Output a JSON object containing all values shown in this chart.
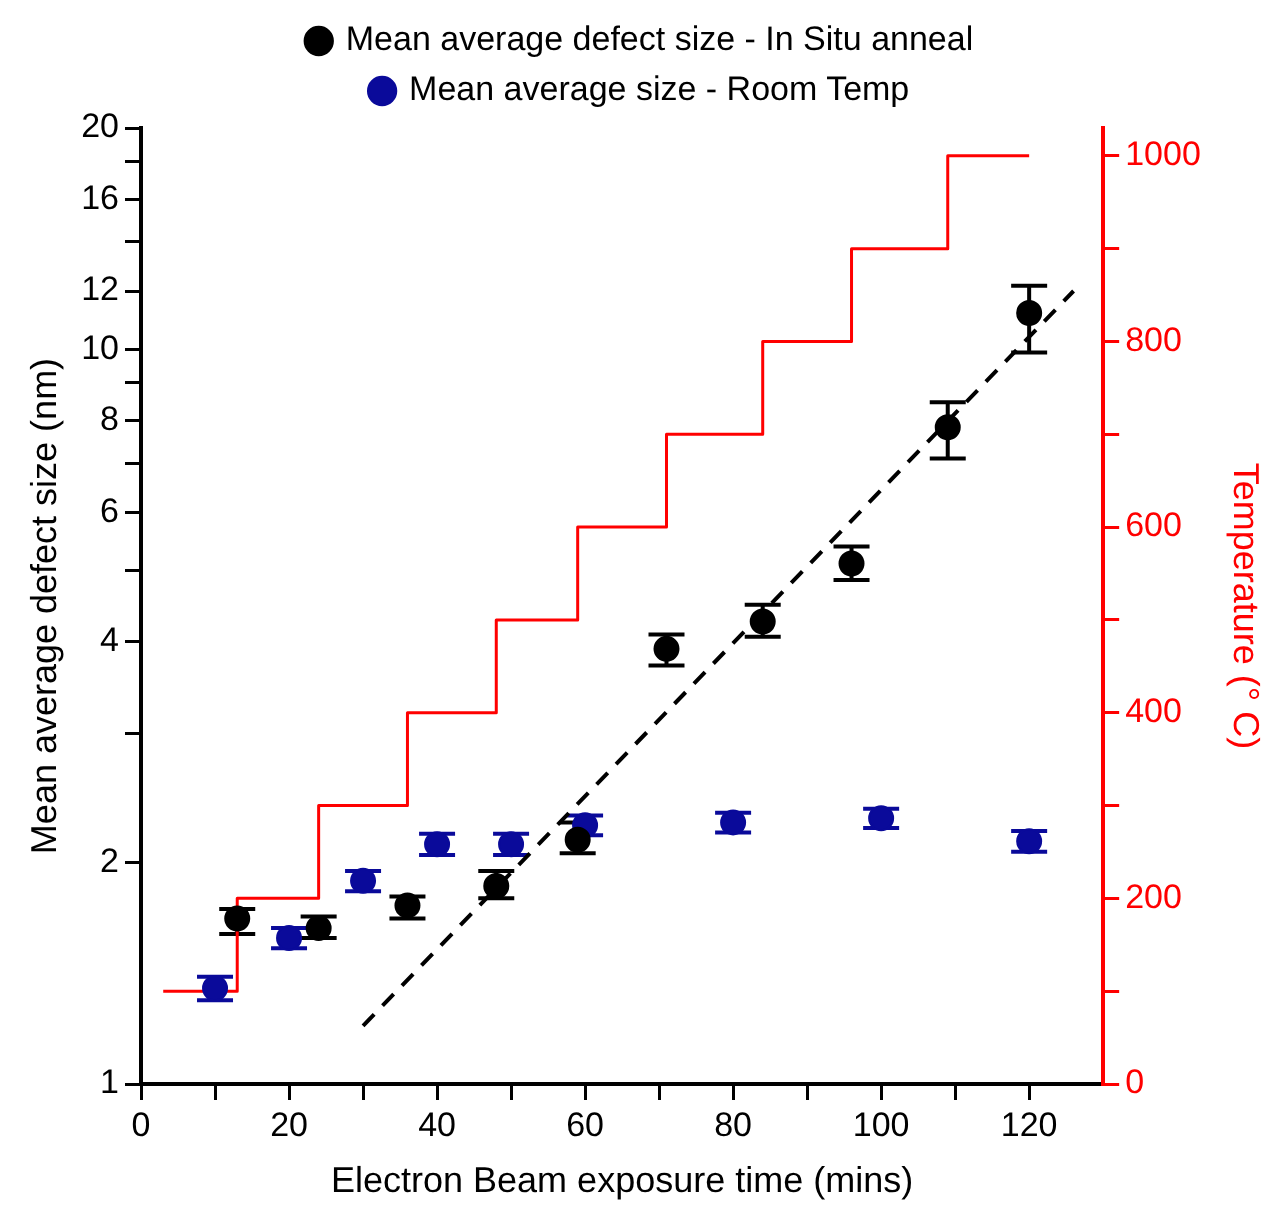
{
  "chart_data": {
    "type": "scatter",
    "xlabel": "Electron Beam exposure time (mins)",
    "ylabel": "Mean average defect size (nm)",
    "y2label": "Temperature (° C)",
    "xlim": [
      0,
      130
    ],
    "xticks": [
      0,
      {
        "value": 10,
        "label": null
      },
      20,
      {
        "value": 30,
        "label": null
      },
      40,
      {
        "value": 50,
        "label": null
      },
      60,
      {
        "value": 70,
        "label": null
      },
      80,
      {
        "value": 90,
        "label": null
      },
      100,
      {
        "value": 110,
        "label": null
      },
      120
    ],
    "ylim": [
      1,
      20
    ],
    "log": "y",
    "yticks": [
      1,
      2,
      {
        "value": 3,
        "label": null
      },
      4,
      {
        "value": 5,
        "label": null
      },
      6,
      {
        "value": 7,
        "label": null
      },
      8,
      {
        "value": 9,
        "label": null
      },
      10,
      12,
      {
        "value": 14,
        "label": null
      },
      16,
      {
        "value": 18,
        "label": null
      },
      20
    ],
    "y2lim": [
      0,
      1030
    ],
    "y2ticks": [
      0,
      {
        "value": 100,
        "label": null
      },
      200,
      {
        "value": 300,
        "label": null
      },
      400,
      {
        "value": 500,
        "label": null
      },
      600,
      {
        "value": 700,
        "label": null
      },
      800,
      {
        "value": 900,
        "label": null
      },
      1000
    ],
    "legend": "top",
    "grid": false,
    "series": [
      {
        "name": "Mean average defect size - In Situ anneal",
        "color": "#000000",
        "marker": "circle",
        "x": [
          13,
          24,
          36,
          48,
          59,
          71,
          84,
          96,
          109,
          120
        ],
        "values": [
          1.68,
          1.63,
          1.75,
          1.86,
          2.15,
          3.91,
          4.26,
          5.11,
          7.83,
          11.2
        ],
        "errors": [
          [
            1.6,
            1.73
          ],
          [
            1.58,
            1.69
          ],
          [
            1.68,
            1.8
          ],
          [
            1.79,
            1.95
          ],
          [
            2.06,
            2.27
          ],
          [
            3.71,
            4.09
          ],
          [
            4.06,
            4.49
          ],
          [
            4.85,
            5.39
          ],
          [
            7.1,
            8.47
          ],
          [
            9.9,
            12.2
          ]
        ]
      },
      {
        "name": "Mean average size - Room Temp",
        "color": "#0a0a9a",
        "marker": "circle",
        "x": [
          10,
          20,
          30,
          40,
          50,
          60,
          80,
          100,
          120
        ],
        "values": [
          1.35,
          1.58,
          1.89,
          2.12,
          2.12,
          2.25,
          2.27,
          2.3,
          2.14
        ],
        "errors": [
          0.05,
          0.05,
          0.06,
          0.07,
          0.07,
          0.07,
          0.07,
          0.07,
          0.07
        ]
      },
      {
        "type": "line",
        "color": "#000000",
        "line_style": "dashed",
        "x": [
          30,
          126
        ],
        "values": [
          1.2,
          12
        ]
      },
      {
        "type": "step",
        "color": "#ff0000",
        "axis": "y2",
        "x": [
          3,
          13,
          24,
          36,
          48,
          59,
          71,
          84,
          96,
          109,
          120
        ],
        "values": [
          100,
          200,
          300,
          400,
          500,
          600,
          700,
          800,
          900,
          1000,
          1000
        ]
      }
    ]
  }
}
